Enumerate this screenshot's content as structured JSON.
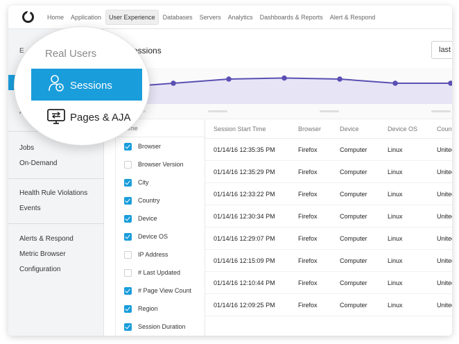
{
  "topnav": {
    "logo": "appdynamics-logo-icon",
    "items": [
      {
        "label": "Home",
        "active": false
      },
      {
        "label": "Application",
        "active": false
      },
      {
        "label": "User Experience",
        "active": true
      },
      {
        "label": "Databases",
        "active": false
      },
      {
        "label": "Servers",
        "active": false
      },
      {
        "label": "Analytics",
        "active": false
      },
      {
        "label": "Dashboards & Reports",
        "active": false
      },
      {
        "label": "Alert & Respond",
        "active": false
      }
    ]
  },
  "sidebar": {
    "partial_top": "E",
    "partial_mid": "A",
    "groups": [
      {
        "items": [
          "Jobs",
          "On-Demand"
        ]
      },
      {
        "items": [
          "Health Rule Violations",
          "Events"
        ]
      },
      {
        "items": [
          "Alerts & Respond",
          "Metric Browser",
          "Configuration"
        ]
      }
    ]
  },
  "lens": {
    "section_title": "Real Users",
    "items": [
      {
        "label": "Sessions",
        "icon": "user-clock-icon",
        "selected": true
      },
      {
        "label": "Pages & AJA",
        "icon": "monitor-swap-icon",
        "selected": false
      }
    ]
  },
  "main": {
    "title": "Sessions",
    "time_range": "last"
  },
  "chart_data": {
    "type": "area",
    "title": "",
    "xlabel": "",
    "ylabel": "",
    "values": [
      0.8,
      1.0,
      1.2,
      1.25,
      1.2,
      1.0,
      1.0,
      0.95
    ],
    "ylim": [
      0,
      1.6
    ],
    "color": "#5a4fb3",
    "fill": "#e7e4f5"
  },
  "chooser": {
    "header": "Time",
    "options": [
      {
        "label": "Browser",
        "checked": true
      },
      {
        "label": "Browser Version",
        "checked": false
      },
      {
        "label": "City",
        "checked": true
      },
      {
        "label": "Country",
        "checked": true
      },
      {
        "label": "Device",
        "checked": true
      },
      {
        "label": "Device OS",
        "checked": true
      },
      {
        "label": "IP Address",
        "checked": false
      },
      {
        "label": "# Last Updated",
        "checked": false
      },
      {
        "label": "# Page View Count",
        "checked": true
      },
      {
        "label": "Region",
        "checked": true
      },
      {
        "label": "Session Duration",
        "checked": true
      }
    ]
  },
  "table": {
    "columns": [
      "Session Start Time",
      "Browser",
      "Device",
      "Device OS",
      "Country"
    ],
    "rows": [
      [
        "01/14/16 12:35:35 PM",
        "Firefox",
        "Computer",
        "Linux",
        "United States"
      ],
      [
        "01/14/16 12:35:29 PM",
        "Firefox",
        "Computer",
        "Linux",
        "United States"
      ],
      [
        "01/14/16 12:33:22 PM",
        "Firefox",
        "Computer",
        "Linux",
        "United States"
      ],
      [
        "01/14/16 12:30:34 PM",
        "Firefox",
        "Computer",
        "Linux",
        "United States"
      ],
      [
        "01/14/16 12:29:07 PM",
        "Firefox",
        "Computer",
        "Linux",
        "United States"
      ],
      [
        "01/14/16 12:15:09 PM",
        "Firefox",
        "Computer",
        "Linux",
        "United States"
      ],
      [
        "01/14/16 12:10:44 PM",
        "Firefox",
        "Computer",
        "Linux",
        "United States"
      ],
      [
        "01/14/16 12:09:25 PM",
        "Firefox",
        "Computer",
        "Linux",
        "United States"
      ]
    ]
  }
}
